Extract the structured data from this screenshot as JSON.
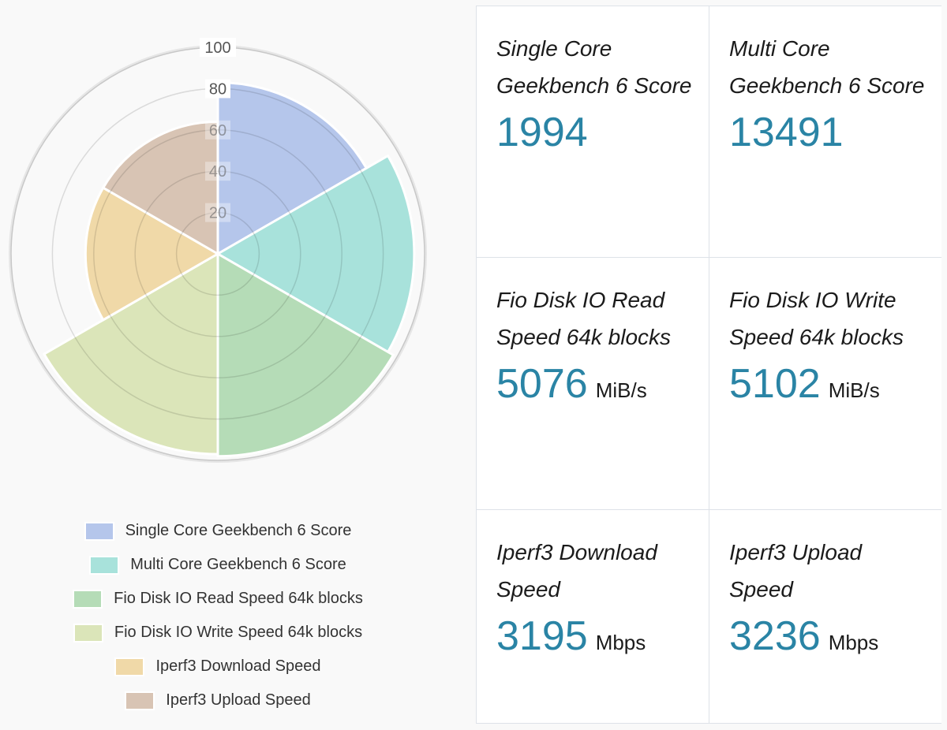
{
  "chart_data": {
    "type": "polarArea",
    "title": "",
    "categories": [
      "Single Core Geekbench 6 Score",
      "Multi Core Geekbench 6 Score",
      "Fio Disk IO Read Speed 64k blocks",
      "Fio Disk IO Write Speed 64k blocks",
      "Iperf3 Download Speed",
      "Iperf3 Upload Speed"
    ],
    "values": [
      83,
      95,
      98,
      97,
      64,
      64
    ],
    "colors": [
      "#b5c6eb",
      "#a8e2db",
      "#b5dcb7",
      "#dbe5b9",
      "#f0d9a8",
      "#d8c4b4"
    ],
    "rlim": [
      0,
      100
    ],
    "r_ticks": [
      20,
      40,
      60,
      80,
      100
    ],
    "grid": true,
    "legend_position": "bottom"
  },
  "legend": {
    "items": [
      {
        "label": "Single Core Geekbench 6 Score",
        "color": "#b5c6eb"
      },
      {
        "label": "Multi Core Geekbench 6 Score",
        "color": "#a8e2db"
      },
      {
        "label": "Fio Disk IO Read Speed 64k blocks",
        "color": "#b5dcb7"
      },
      {
        "label": "Fio Disk IO Write Speed 64k blocks",
        "color": "#dbe5b9"
      },
      {
        "label": "Iperf3 Download Speed",
        "color": "#f0d9a8"
      },
      {
        "label": "Iperf3 Upload Speed",
        "color": "#d8c4b4"
      }
    ]
  },
  "stats": [
    {
      "title": "Single Core Geekbench 6 Score",
      "value": "1994",
      "unit": ""
    },
    {
      "title": "Multi Core Geekbench 6 Score",
      "value": "13491",
      "unit": ""
    },
    {
      "title": "Fio Disk IO Read Speed 64k blocks",
      "value": "5076",
      "unit": "MiB/s"
    },
    {
      "title": "Fio Disk IO Write Speed 64k blocks",
      "value": "5102",
      "unit": "MiB/s"
    },
    {
      "title": "Iperf3 Download Speed",
      "value": "3195",
      "unit": "Mbps"
    },
    {
      "title": "Iperf3 Upload Speed",
      "value": "3236",
      "unit": "Mbps"
    }
  ],
  "colors": {
    "value": "#2a84a5",
    "grid": "#c8c8c8",
    "tick_text": "#666666"
  }
}
